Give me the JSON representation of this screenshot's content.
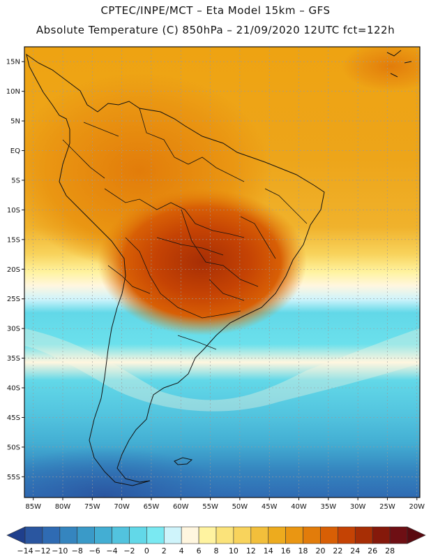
{
  "header": {
    "line1": "CPTEC/INPE/MCT –  Eta Model 15km – GFS",
    "line2": "Absolute Temperature (C) 850hPa – 21/09/2020 12UTC fct=122h"
  },
  "map": {
    "lat_labels": [
      "15N",
      "10N",
      "5N",
      "EQ",
      "5S",
      "10S",
      "15S",
      "20S",
      "25S",
      "30S",
      "35S",
      "40S",
      "45S",
      "50S",
      "55S"
    ],
    "lon_labels": [
      "85W",
      "80W",
      "75W",
      "70W",
      "65W",
      "60W",
      "55W",
      "50W",
      "45W",
      "40W",
      "35W",
      "30W",
      "25W",
      "20W"
    ],
    "lat_values": [
      15,
      10,
      5,
      0,
      -5,
      -10,
      -15,
      -20,
      -25,
      -30,
      -35,
      -40,
      -45,
      -50,
      -55
    ],
    "lon_values": [
      -85,
      -80,
      -75,
      -70,
      -65,
      -60,
      -55,
      -50,
      -45,
      -40,
      -35,
      -30,
      -25,
      -20
    ],
    "extent": {
      "lon_min": -86.5,
      "lon_max": -19.5,
      "lat_min": -58.5,
      "lat_max": 17.5
    }
  },
  "colorbar": {
    "labels": [
      "-14",
      "-12",
      "-10",
      "-8",
      "-6",
      "-4",
      "-2",
      "0",
      "2",
      "4",
      "6",
      "8",
      "10",
      "12",
      "14",
      "16",
      "18",
      "20",
      "22",
      "24",
      "26",
      "28"
    ],
    "colors": [
      "#1f3f8c",
      "#2a56a0",
      "#2f6bb3",
      "#3585bf",
      "#3a9ac8",
      "#43aed3",
      "#52c3de",
      "#62d8e8",
      "#7ae9f2",
      "#cff4fb",
      "#fff6df",
      "#fff3a0",
      "#fbe37a",
      "#f8d35c",
      "#f2bf3b",
      "#edab1e",
      "#ea9612",
      "#e27c0a",
      "#d85f05",
      "#c54304",
      "#a72e05",
      "#85190b",
      "#6e0f14",
      "#5a0a10"
    ]
  }
}
